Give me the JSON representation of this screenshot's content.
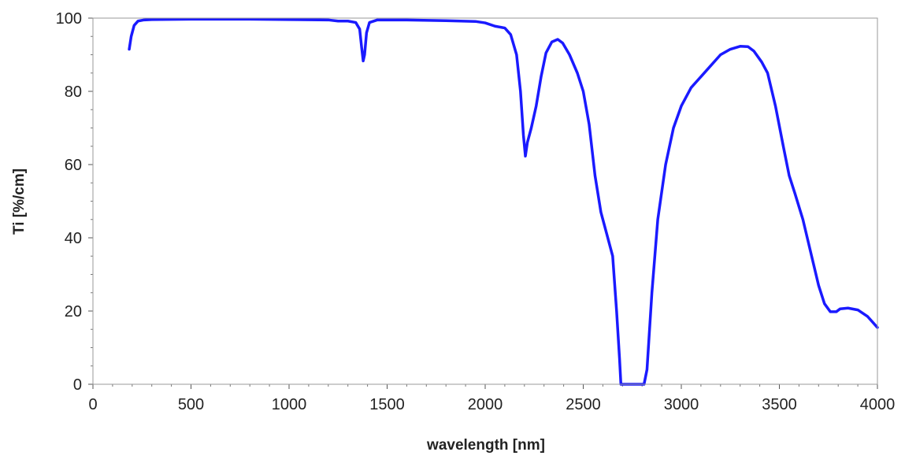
{
  "chart_data": {
    "type": "line",
    "title": "",
    "xlabel": "wavelength [nm]",
    "ylabel": "Ti [%/cm]",
    "xlim": [
      0,
      4000
    ],
    "ylim": [
      0,
      100
    ],
    "x_ticks": [
      0,
      500,
      1000,
      1500,
      2000,
      2500,
      3000,
      3500,
      4000
    ],
    "y_ticks": [
      0,
      20,
      40,
      60,
      80,
      100
    ],
    "x_tick_labels": [
      "0",
      "500",
      "1000",
      "1500",
      "2000",
      "2500",
      "3000",
      "3500",
      "4000"
    ],
    "y_tick_labels": [
      "0",
      "20",
      "40",
      "60",
      "80",
      "100"
    ],
    "grid": false,
    "legend": false,
    "series": [
      {
        "color": "#1a1aff",
        "points": [
          [
            185,
            91.5
          ],
          [
            195,
            95
          ],
          [
            210,
            98
          ],
          [
            230,
            99.2
          ],
          [
            260,
            99.5
          ],
          [
            300,
            99.6
          ],
          [
            500,
            99.7
          ],
          [
            800,
            99.7
          ],
          [
            1000,
            99.6
          ],
          [
            1200,
            99.5
          ],
          [
            1250,
            99.2
          ],
          [
            1300,
            99.2
          ],
          [
            1340,
            98.8
          ],
          [
            1360,
            97
          ],
          [
            1370,
            92
          ],
          [
            1378,
            88.3
          ],
          [
            1385,
            90
          ],
          [
            1395,
            96
          ],
          [
            1410,
            98.8
          ],
          [
            1450,
            99.5
          ],
          [
            1600,
            99.5
          ],
          [
            1800,
            99.3
          ],
          [
            1950,
            99.1
          ],
          [
            2000,
            98.7
          ],
          [
            2050,
            97.8
          ],
          [
            2100,
            97.3
          ],
          [
            2130,
            95.5
          ],
          [
            2160,
            90
          ],
          [
            2180,
            80
          ],
          [
            2195,
            68
          ],
          [
            2205,
            62.3
          ],
          [
            2215,
            66
          ],
          [
            2235,
            70
          ],
          [
            2260,
            76
          ],
          [
            2285,
            84
          ],
          [
            2310,
            90.5
          ],
          [
            2340,
            93.5
          ],
          [
            2370,
            94.2
          ],
          [
            2395,
            93.2
          ],
          [
            2430,
            90
          ],
          [
            2470,
            85
          ],
          [
            2500,
            80
          ],
          [
            2530,
            71
          ],
          [
            2560,
            57
          ],
          [
            2590,
            47
          ],
          [
            2620,
            41
          ],
          [
            2650,
            35
          ],
          [
            2670,
            20
          ],
          [
            2685,
            7
          ],
          [
            2692,
            0
          ],
          [
            2700,
            0
          ],
          [
            2780,
            0
          ],
          [
            2810,
            0
          ],
          [
            2825,
            4
          ],
          [
            2850,
            25
          ],
          [
            2880,
            45
          ],
          [
            2920,
            60
          ],
          [
            2960,
            70
          ],
          [
            3000,
            76
          ],
          [
            3050,
            81
          ],
          [
            3100,
            84
          ],
          [
            3150,
            87
          ],
          [
            3200,
            90
          ],
          [
            3250,
            91.5
          ],
          [
            3300,
            92.3
          ],
          [
            3340,
            92.2
          ],
          [
            3370,
            91
          ],
          [
            3410,
            88
          ],
          [
            3440,
            85
          ],
          [
            3480,
            76
          ],
          [
            3520,
            65
          ],
          [
            3550,
            57
          ],
          [
            3580,
            52
          ],
          [
            3620,
            45
          ],
          [
            3660,
            36
          ],
          [
            3700,
            27
          ],
          [
            3730,
            22
          ],
          [
            3760,
            19.8
          ],
          [
            3790,
            19.8
          ],
          [
            3810,
            20.6
          ],
          [
            3850,
            20.8
          ],
          [
            3900,
            20.3
          ],
          [
            3950,
            18.5
          ],
          [
            4000,
            15.5
          ]
        ]
      }
    ]
  }
}
